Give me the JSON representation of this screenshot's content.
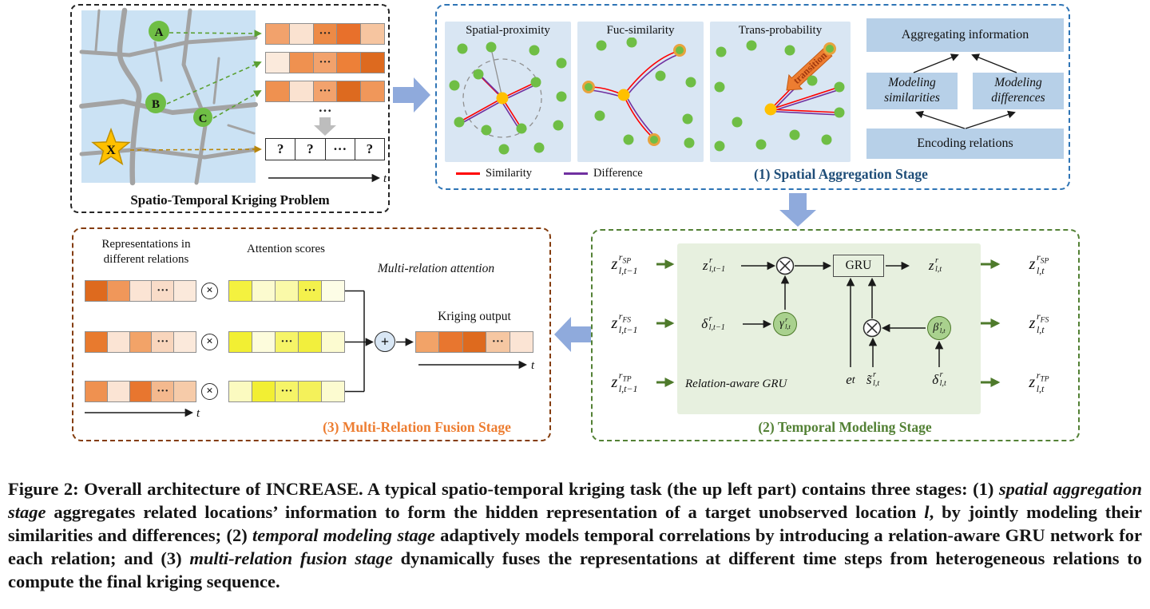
{
  "icons": {
    "multiply": "×",
    "plus": "+"
  },
  "figure": {
    "kriging_problem": {
      "title": "Spatio-Temporal Kriging Problem",
      "locations": [
        "A",
        "B",
        "C"
      ],
      "target": "X",
      "series_rows": [
        [
          {
            "c": "#F2A26C"
          },
          {
            "c": "#FAE2D0"
          },
          {
            "c": "#ED8A46",
            "t": "···"
          },
          {
            "c": "#E8702B"
          },
          {
            "c": "#F6C5A0"
          }
        ],
        [
          {
            "c": "#FBEADC"
          },
          {
            "c": "#EF9150"
          },
          {
            "c": "#F2A26C",
            "t": "···"
          },
          {
            "c": "#ED8038"
          },
          {
            "c": "#DD6A1F"
          }
        ],
        [
          {
            "c": "#EF9150"
          },
          {
            "c": "#FAE2D0"
          },
          {
            "c": "#F2A26C",
            "t": "···"
          },
          {
            "c": "#DD6A1F"
          },
          {
            "c": "#F0975A"
          }
        ]
      ],
      "gap_ellipsis": "···",
      "query_cells": [
        {
          "c": "#FFFFFF",
          "t": "?"
        },
        {
          "c": "#FFFFFF",
          "t": "?"
        },
        {
          "c": "#FFFFFF",
          "t": "···"
        },
        {
          "c": "#FFFFFF",
          "t": "?"
        }
      ],
      "time_axis": "t"
    },
    "spatial_stage": {
      "label": "(1) Spatial Aggregation Stage",
      "label_color": "#1F4E79",
      "panel_titles": [
        "Spatial-proximity",
        "Fuc-similarity",
        "Trans-probability"
      ],
      "transition_label": "transition",
      "legend": [
        {
          "name": "Similarity",
          "color": "#FF0000"
        },
        {
          "name": "Difference",
          "color": "#7030A0"
        }
      ],
      "boxes": {
        "aggregate": "Aggregating information",
        "similarities": "Modeling similarities",
        "differences": "Modeling differences",
        "encode": "Encoding relations"
      }
    },
    "temporal_stage": {
      "label": "(2) Temporal Modeling Stage",
      "label_color": "#538135",
      "gru": "GRU",
      "relation_gru": "Relation-aware GRU",
      "inputs": [
        "z<span class='st'><span>r<sub>SP</sub></span><span>l,t−1</span></span>",
        "z<span class='st'><span>r<sub>FS</sub></span><span>l,t−1</span></span>",
        "z<span class='st'><span>r<sub>TP</sub></span><span>l,t−1</span></span>"
      ],
      "outputs": [
        "z<span class='st'><span>r<sub>SP</sub></span><span>l,t</span></span>",
        "z<span class='st'><span>r<sub>FS</sub></span><span>l,t</span></span>",
        "z<span class='st'><span>r<sub>TP</sub></span><span>l,t</span></span>"
      ],
      "math": {
        "z_prev": "z<span class='st'><span>r</span><span>l,t−1</span></span>",
        "z_next": "z<span class='st'><span>r</span><span>l,t</span></span>",
        "delta_prev": "δ<span class='st'><span>r</span><span>l,t−1</span></span>",
        "gamma": "γ<span class='st'><span>r</span><span>l,t</span></span>",
        "beta": "β<span class='st'><span>r</span><span>l,t</span></span>",
        "e_t": "e<sub>t</sub>",
        "s_tilde": "s̃<span class='st'><span>r</span><span>l,t</span></span>",
        "delta_t": "δ<span class='st'><span>r</span><span>l,t</span></span>"
      }
    },
    "fusion_stage": {
      "label": "(3) Multi-Relation Fusion Stage",
      "label_color": "#ED7D31",
      "representations_label": "Representations in different relations",
      "attention_label": "Attention scores",
      "multi_attention_label": "Multi-relation attention",
      "kriging_label": "Kriging output",
      "rep_rows": [
        [
          {
            "c": "#DE6A1E"
          },
          {
            "c": "#F0975A"
          },
          {
            "c": "#FBE4D4"
          },
          {
            "c": "#F9DCC8",
            "t": "···"
          },
          {
            "c": "#FBE9DB"
          }
        ],
        [
          {
            "c": "#E87A2E"
          },
          {
            "c": "#FBE4D4"
          },
          {
            "c": "#F2A368"
          },
          {
            "c": "#F8D5BC",
            "t": "···"
          },
          {
            "c": "#FBE9DB"
          }
        ],
        [
          {
            "c": "#EF9150"
          },
          {
            "c": "#FBE4D4"
          },
          {
            "c": "#E8762F"
          },
          {
            "c": "#F4B98E",
            "t": "···"
          },
          {
            "c": "#F6CBA9"
          }
        ]
      ],
      "att_rows": [
        [
          {
            "c": "#F4F13F"
          },
          {
            "c": "#FCFBCF"
          },
          {
            "c": "#FAF9A8"
          },
          {
            "c": "#F4F14C",
            "t": "···"
          },
          {
            "c": "#FDFDE6"
          }
        ],
        [
          {
            "c": "#F2EF33"
          },
          {
            "c": "#FDFCDC"
          },
          {
            "c": "#F6F467",
            "t": "···"
          },
          {
            "c": "#F2EF3D"
          },
          {
            "c": "#FCFBD0"
          }
        ],
        [
          {
            "c": "#FBFAC0"
          },
          {
            "c": "#F2EF33"
          },
          {
            "c": "#F6F467",
            "t": "···"
          },
          {
            "c": "#F4F15A"
          },
          {
            "c": "#FCFBD0"
          }
        ]
      ],
      "output_cells": [
        {
          "c": "#F2A368"
        },
        {
          "c": "#E8762F"
        },
        {
          "c": "#DE6A1E"
        },
        {
          "c": "#F6C7A2",
          "t": "···"
        },
        {
          "c": "#FBE4D4"
        }
      ],
      "time_axis": "t"
    }
  },
  "caption": {
    "segments": [
      {
        "t": "Figure 2: Overall architecture of INCREASE. A typical spatio-temporal kriging task (the up left part) contains three stages: (1) ",
        "i": false
      },
      {
        "t": "spatial aggregation stage",
        "i": true
      },
      {
        "t": " aggregates related locations’ information to form the hidden representation of a target unobserved location ",
        "i": false
      },
      {
        "t": "l",
        "i": true
      },
      {
        "t": ", by jointly modeling their similarities and differences; (2) ",
        "i": false
      },
      {
        "t": "temporal modeling stage",
        "i": true
      },
      {
        "t": " adaptively models temporal correlations by introducing a relation-aware GRU network for each relation; and (3) ",
        "i": false
      },
      {
        "t": "multi-relation fusion stage",
        "i": true
      },
      {
        "t": " dynamically fuses the representations at different time steps from heterogeneous relations to compute the final kriging sequence.",
        "i": false
      }
    ]
  }
}
